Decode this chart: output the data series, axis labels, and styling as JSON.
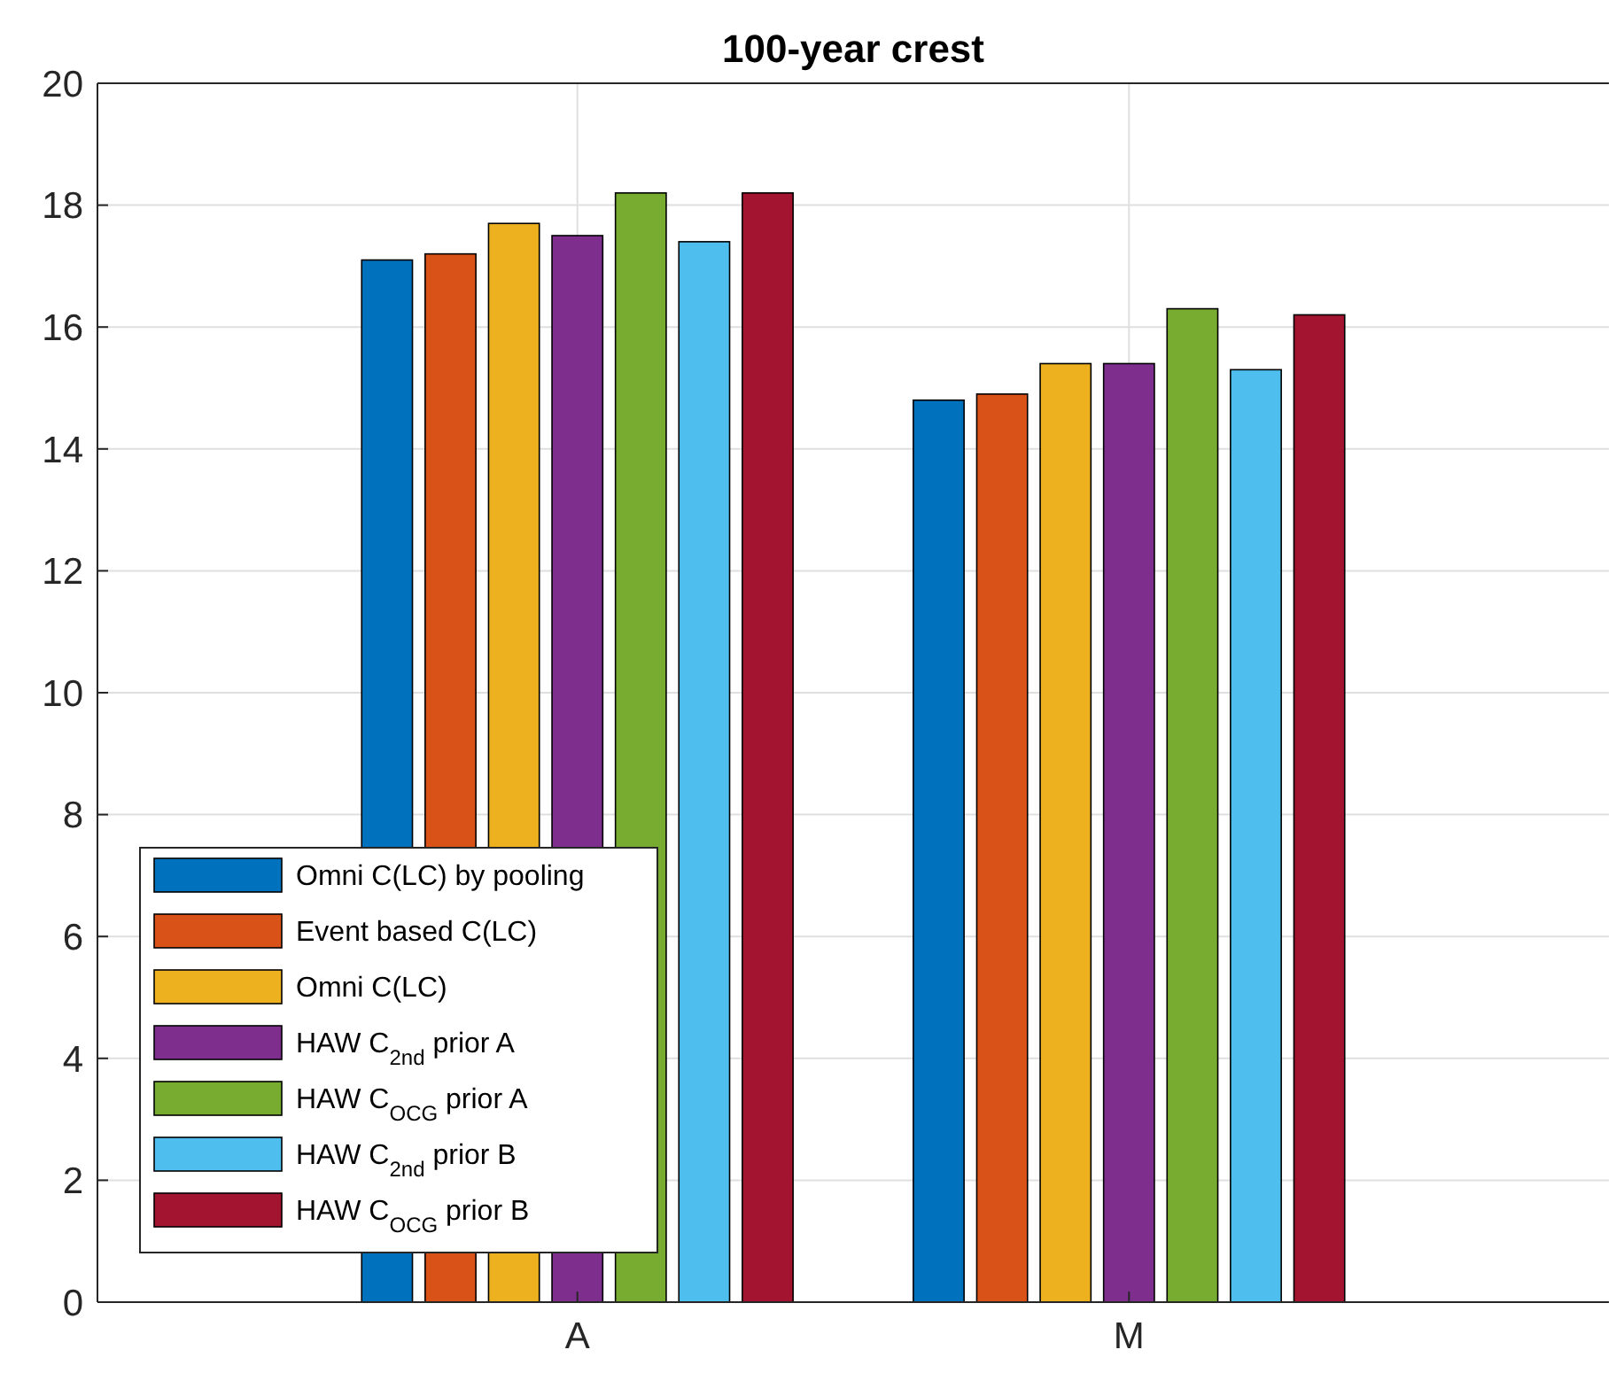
{
  "chart_data": {
    "type": "bar",
    "title": "100-year crest",
    "categories": [
      "A",
      "M"
    ],
    "series": [
      {
        "name": "Omni C(LC) by pooling",
        "color": "#0072bd",
        "values": [
          17.1,
          14.8
        ]
      },
      {
        "name": "Event based C(LC)",
        "color": "#d95319",
        "values": [
          17.2,
          14.9
        ]
      },
      {
        "name": "Omni C(LC)",
        "color": "#edb120",
        "values": [
          17.7,
          15.4
        ]
      },
      {
        "name": "HAW C$_{2nd}$ prior A",
        "color": "#7e2f8e",
        "values": [
          17.5,
          15.4
        ]
      },
      {
        "name": "HAW C$_{OCG}$ prior A",
        "color": "#77ac30",
        "values": [
          18.2,
          16.3
        ]
      },
      {
        "name": "HAW C$_{2nd}$ prior B",
        "color": "#4dbeee",
        "values": [
          17.4,
          15.3
        ]
      },
      {
        "name": "HAW C$_{OCG}$ prior B",
        "color": "#a2142f",
        "values": [
          18.2,
          16.2
        ]
      }
    ],
    "ylim": [
      0,
      20
    ],
    "yticks": [
      0,
      2,
      4,
      6,
      8,
      10,
      12,
      14,
      16,
      18,
      20
    ],
    "grid": true,
    "legend": "bottom left"
  }
}
